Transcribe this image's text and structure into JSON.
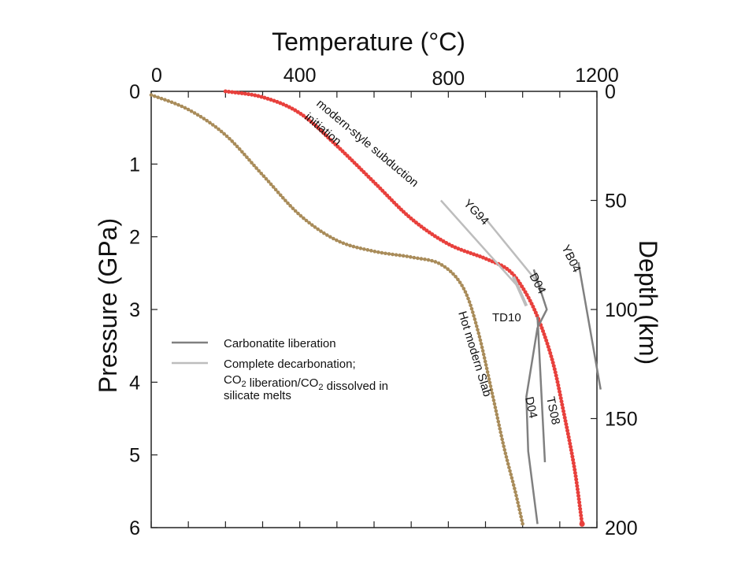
{
  "chart_data": {
    "type": "line",
    "title": "",
    "xlabel": "Temperature (°C)",
    "ylabel": "Pressure (GPa)",
    "y2label": "Depth (km)",
    "xlim": [
      0,
      1200
    ],
    "ylim": [
      0,
      6
    ],
    "x_ticks": [
      "0",
      "400",
      "800",
      "1200"
    ],
    "y_ticks": [
      "0",
      "1",
      "2",
      "3",
      "4",
      "5",
      "6"
    ],
    "y2_ticks": [
      "0",
      "50",
      "100",
      "150",
      "200"
    ],
    "y2lim": [
      0,
      200
    ],
    "grid": false,
    "colors": {
      "red_curve": "#e8403c",
      "tan_curve": "#a98c5a",
      "carbonatite": "#808080",
      "decarbonation": "#bdbdbd"
    },
    "series": [
      {
        "name": "modern-style subduction initiation",
        "style": "dotted-red",
        "points": [
          [
            200,
            0.0
          ],
          [
            300,
            0.08
          ],
          [
            400,
            0.3
          ],
          [
            500,
            0.75
          ],
          [
            600,
            1.25
          ],
          [
            700,
            1.75
          ],
          [
            800,
            2.1
          ],
          [
            900,
            2.3
          ],
          [
            960,
            2.45
          ],
          [
            1000,
            2.7
          ],
          [
            1040,
            3.1
          ],
          [
            1080,
            3.7
          ],
          [
            1110,
            4.4
          ],
          [
            1140,
            5.2
          ],
          [
            1160,
            5.95
          ]
        ]
      },
      {
        "name": "Hot modern Slab",
        "style": "dotted-tan",
        "points": [
          [
            0,
            0.05
          ],
          [
            100,
            0.25
          ],
          [
            200,
            0.6
          ],
          [
            300,
            1.15
          ],
          [
            400,
            1.7
          ],
          [
            500,
            2.05
          ],
          [
            600,
            2.2
          ],
          [
            700,
            2.28
          ],
          [
            780,
            2.38
          ],
          [
            840,
            2.7
          ],
          [
            880,
            3.3
          ],
          [
            920,
            4.2
          ],
          [
            950,
            4.9
          ],
          [
            980,
            5.5
          ],
          [
            1000,
            5.95
          ]
        ]
      },
      {
        "name": "YG94",
        "category": "decarbonation",
        "points": [
          [
            780,
            1.5
          ],
          [
            990,
            2.7
          ]
        ]
      },
      {
        "name": "",
        "category": "decarbonation",
        "points": [
          [
            900,
            1.75
          ],
          [
            1060,
            2.75
          ]
        ]
      },
      {
        "name": "TD10",
        "category": "decarbonation",
        "points": [
          [
            975,
            2.55
          ],
          [
            1010,
            2.95
          ]
        ]
      },
      {
        "name": "D04",
        "category": "carbonatite",
        "points": [
          [
            1040,
            3.25
          ],
          [
            1010,
            4.2
          ],
          [
            1015,
            4.95
          ],
          [
            1040,
            5.95
          ]
        ]
      },
      {
        "name": "D04",
        "category": "carbonatite",
        "points": [
          [
            1030,
            2.45
          ],
          [
            1065,
            3.0
          ],
          [
            1040,
            3.25
          ]
        ]
      },
      {
        "name": "TS08",
        "category": "carbonatite",
        "points": [
          [
            1040,
            3.1
          ],
          [
            1060,
            5.1
          ]
        ]
      },
      {
        "name": "YB04",
        "category": "carbonatite",
        "points": [
          [
            1150,
            2.35
          ],
          [
            1210,
            4.1
          ]
        ]
      }
    ],
    "labels": {
      "red_curve": [
        "modern-style subduction",
        "initiation"
      ],
      "tan_curve": "Hot modern Slab",
      "YG94": "YG94",
      "TD10": "TD10",
      "D04_upper": "D04",
      "D04_lower": "D04",
      "TS08": "TS08",
      "YB04": "YB04"
    },
    "legend": {
      "position": "center-left",
      "items": [
        {
          "category": "carbonatite",
          "lines": [
            "Carbonatite liberation"
          ]
        },
        {
          "category": "decarbonation",
          "lines": [
            "Complete decarbonation;",
            "CO2 liberation/CO2 dissolved in",
            "silicate melts"
          ]
        }
      ]
    }
  }
}
